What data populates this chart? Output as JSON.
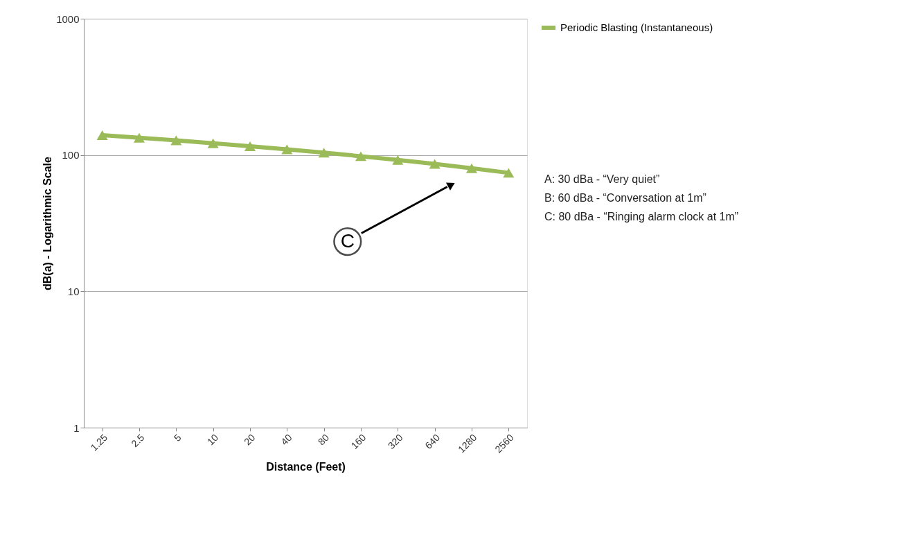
{
  "chart_data": {
    "type": "line",
    "xlabel": "Distance (Feet)",
    "ylabel": "dB(a) - Logarithmic Scale",
    "categories": [
      "1.25",
      "2.5",
      "5",
      "10",
      "20",
      "40",
      "80",
      "160",
      "320",
      "640",
      "1280",
      "2560"
    ],
    "series": [
      {
        "name": "Periodic Blasting (Instantaneous)",
        "color": "#9bbb59",
        "values": [
          140,
          134,
          128,
          122,
          116,
          110,
          104,
          98,
          92,
          86,
          80,
          74
        ]
      }
    ],
    "ylim": [
      1,
      1000
    ],
    "yticks": [
      1,
      10,
      100,
      1000
    ],
    "log": true,
    "grid": "y",
    "legend": "top right",
    "marker": "triangle",
    "line_style": "solid",
    "annotations": [
      "C",
      "A:  30 dBa - “Very quiet”",
      "B:  60 dBa - “Conversation at 1m”",
      "C:  80 dBa - “Ringing alarm clock at 1m”"
    ]
  }
}
